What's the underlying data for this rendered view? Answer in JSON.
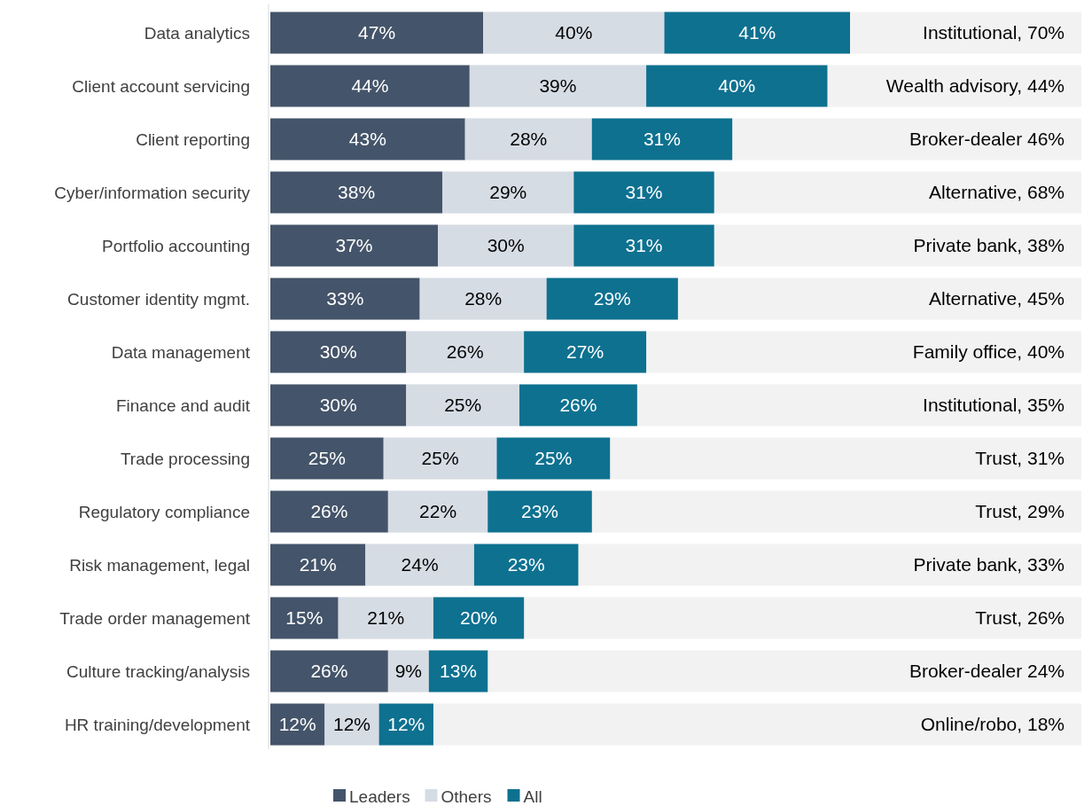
{
  "chart_data": {
    "type": "bar",
    "orientation": "horizontal",
    "stacked": true,
    "categories": [
      "Data analytics",
      "Client account servicing",
      "Client reporting",
      "Cyber/information security",
      "Portfolio accounting",
      "Customer identity mgmt.",
      "Data management",
      "Finance and audit",
      "Trade processing",
      "Regulatory compliance",
      "Risk management, legal",
      "Trade order management",
      "Culture tracking/analysis",
      "HR training/development"
    ],
    "series": [
      {
        "name": "Leaders",
        "color": "#44546a",
        "values": [
          47,
          44,
          43,
          38,
          37,
          33,
          30,
          30,
          25,
          26,
          21,
          15,
          26,
          12
        ],
        "value_labels": [
          "47%",
          "44%",
          "43%",
          "38%",
          "37%",
          "33%",
          "30%",
          "30%",
          "25%",
          "26%",
          "21%",
          "15%",
          "26%",
          "12%"
        ]
      },
      {
        "name": "Others",
        "color": "#d6dce4",
        "values": [
          40,
          39,
          28,
          29,
          30,
          28,
          26,
          25,
          25,
          22,
          24,
          21,
          9,
          12
        ],
        "value_labels": [
          "40%",
          "39%",
          "28%",
          "29%",
          "30%",
          "28%",
          "26%",
          "25%",
          "25%",
          "22%",
          "24%",
          "21%",
          "9%",
          "12%"
        ]
      },
      {
        "name": "All",
        "color": "#0e7190",
        "values": [
          41,
          40,
          31,
          31,
          31,
          29,
          27,
          26,
          25,
          23,
          23,
          20,
          13,
          12
        ],
        "value_labels": [
          "41%",
          "40%",
          "31%",
          "31%",
          "31%",
          "29%",
          "27%",
          "26%",
          "25%",
          "23%",
          "23%",
          "20%",
          "13%",
          "12%"
        ]
      }
    ],
    "annotations": [
      "Institutional, 70%",
      "Wealth advisory, 44%",
      "Broker-dealer 46%",
      "Alternative, 68%",
      "Private bank, 38%",
      "Alternative, 45%",
      "Family office, 40%",
      "Institutional, 35%",
      "Trust, 31%",
      "Trust, 29%",
      "Private bank, 33%",
      "Trust, 26%",
      "Broker-dealer 24%",
      "Online/robo, 18%"
    ],
    "legend": "bottom",
    "tick_labels": "y"
  }
}
